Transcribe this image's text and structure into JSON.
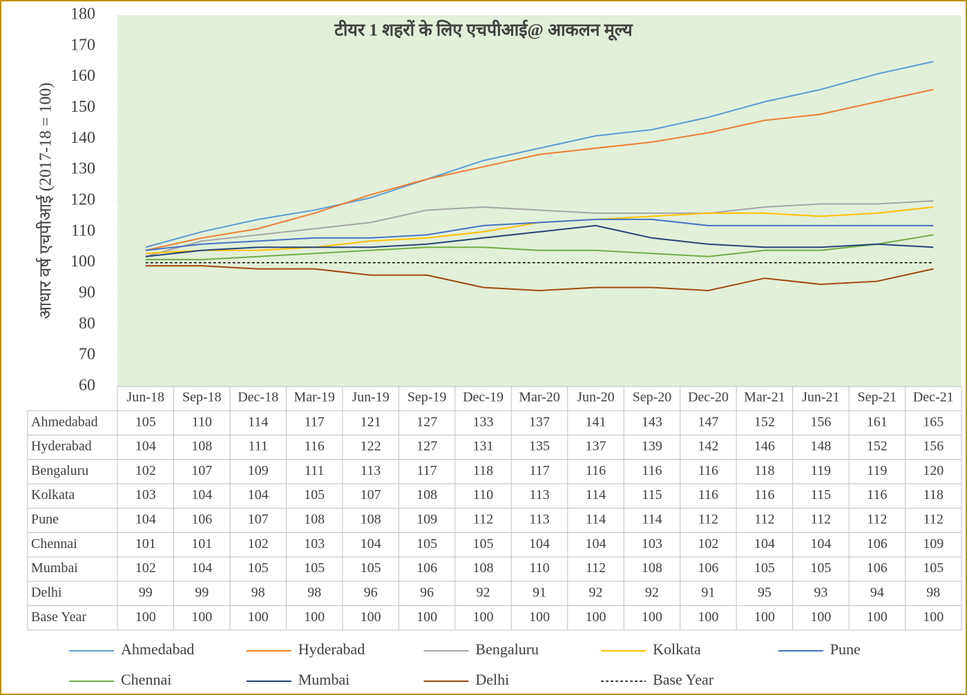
{
  "chart_data": {
    "type": "line",
    "title": "टीयर 1 शहरों के लिए एचपीआई@ आकलन मूल्य",
    "y_label": "आधार वर्ष एचपीआई (2017-18 = 100)",
    "categories": [
      "Jun-18",
      "Sep-18",
      "Dec-18",
      "Mar-19",
      "Jun-19",
      "Sep-19",
      "Dec-19",
      "Mar-20",
      "Jun-20",
      "Sep-20",
      "Dec-20",
      "Mar-21",
      "Jun-21",
      "Sep-21",
      "Dec-21"
    ],
    "ylim": [
      60,
      180
    ],
    "yticks": [
      60,
      70,
      80,
      90,
      100,
      110,
      120,
      130,
      140,
      150,
      160,
      170,
      180
    ],
    "series": [
      {
        "name": "Ahmedabad",
        "color": "#5b9bd5",
        "values": [
          105,
          110,
          114,
          117,
          121,
          127,
          133,
          137,
          141,
          143,
          147,
          152,
          156,
          161,
          165
        ]
      },
      {
        "name": "Hyderabad",
        "color": "#ed7d31",
        "values": [
          104,
          108,
          111,
          116,
          122,
          127,
          131,
          135,
          137,
          139,
          142,
          146,
          148,
          152,
          156
        ]
      },
      {
        "name": "Bengaluru",
        "color": "#a5a5a5",
        "values": [
          102,
          107,
          109,
          111,
          113,
          117,
          118,
          117,
          116,
          116,
          116,
          118,
          119,
          119,
          120
        ]
      },
      {
        "name": "Kolkata",
        "color": "#ffc000",
        "values": [
          103,
          104,
          104,
          105,
          107,
          108,
          110,
          113,
          114,
          115,
          116,
          116,
          115,
          116,
          118
        ]
      },
      {
        "name": "Pune",
        "color": "#4472c4",
        "values": [
          104,
          106,
          107,
          108,
          108,
          109,
          112,
          113,
          114,
          114,
          112,
          112,
          112,
          112,
          112
        ]
      },
      {
        "name": "Chennai",
        "color": "#70ad47",
        "values": [
          101,
          101,
          102,
          103,
          104,
          105,
          105,
          104,
          104,
          103,
          102,
          104,
          104,
          106,
          109
        ]
      },
      {
        "name": "Mumbai",
        "color": "#264478",
        "values": [
          102,
          104,
          105,
          105,
          105,
          106,
          108,
          110,
          112,
          108,
          106,
          105,
          105,
          106,
          105
        ]
      },
      {
        "name": "Delhi",
        "color": "#9e480e",
        "values": [
          99,
          99,
          98,
          98,
          96,
          96,
          92,
          91,
          92,
          92,
          91,
          95,
          93,
          94,
          98
        ]
      },
      {
        "name": "Base Year",
        "color": "#000000",
        "style": "dashed",
        "values": [
          100,
          100,
          100,
          100,
          100,
          100,
          100,
          100,
          100,
          100,
          100,
          100,
          100,
          100,
          100
        ]
      }
    ]
  }
}
